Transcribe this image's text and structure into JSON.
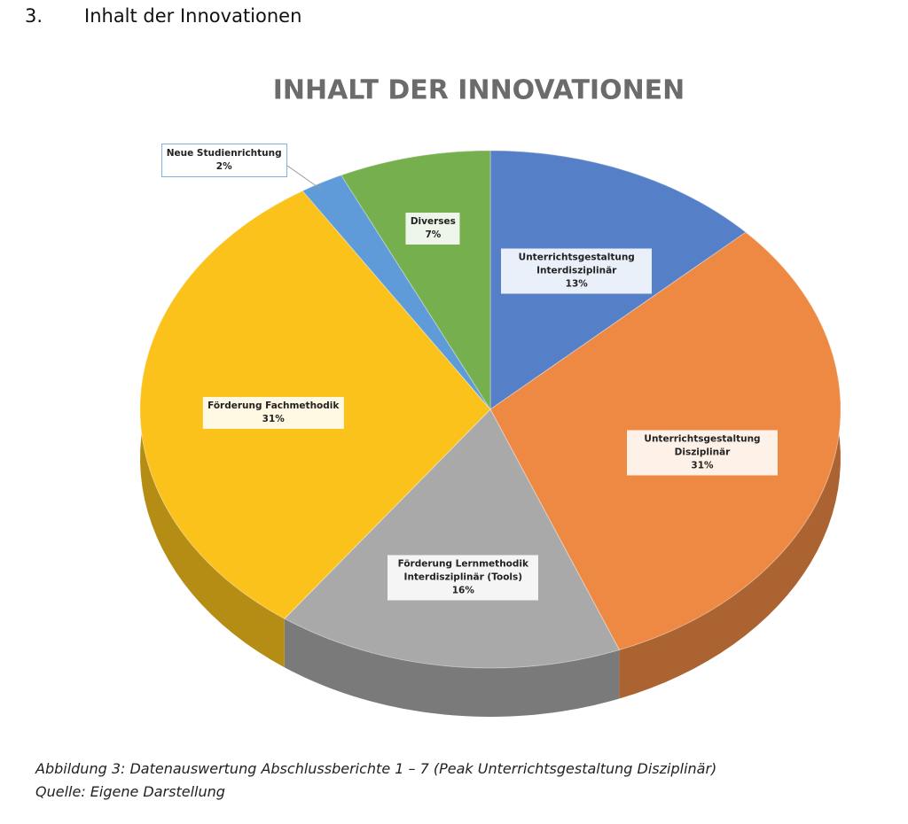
{
  "heading": {
    "number": "3.",
    "title": "Inhalt der Innovationen"
  },
  "chart_data": {
    "type": "pie",
    "title": "INHALT DER INNOVATIONEN",
    "categories": [
      "Unterrichtsgestaltung Interdisziplinär",
      "Unterrichtsgestaltung Disziplinär",
      "Förderung Lernmethodik Interdisziplinär (Tools)",
      "Förderung Fachmethodik",
      "Neue Studienrichtung",
      "Diverses"
    ],
    "values": [
      13,
      31,
      16,
      31,
      2,
      7
    ],
    "value_labels": [
      "13%",
      "31%",
      "16%",
      "31%",
      "2%",
      "7%"
    ],
    "colors": [
      "#5580c8",
      "#ee8944",
      "#a9a9a9",
      "#fbc21c",
      "#5e9bd8",
      "#76b04e"
    ]
  },
  "caption": [
    "Abbildung 3: Datenauswertung Abschlussberichte 1 – 7 (Peak Unterrichtsgestaltung Disziplinär)",
    "Quelle: Eigene Darstellung"
  ]
}
